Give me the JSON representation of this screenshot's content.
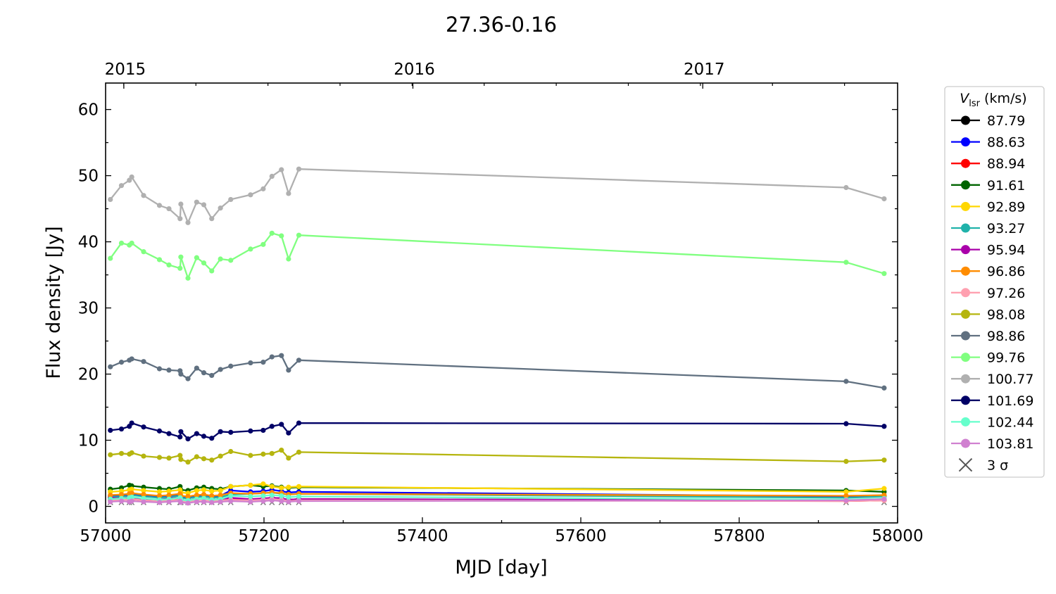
{
  "chart_data": {
    "type": "line",
    "title": "27.36-0.16",
    "xlabel": "MJD [day]",
    "ylabel": "Flux density [Jy]",
    "xlim": [
      57000,
      58000
    ],
    "ylim": [
      -2.5,
      64
    ],
    "xticks": [
      57000,
      57200,
      57400,
      57600,
      57800,
      58000
    ],
    "yticks": [
      0,
      10,
      20,
      30,
      40,
      50,
      60
    ],
    "top_axis": {
      "ticks": [
        {
          "label": "2015",
          "mjd": 57023
        },
        {
          "label": "2016",
          "mjd": 57388
        },
        {
          "label": "2017",
          "mjd": 57754
        }
      ]
    },
    "grid": false,
    "legend": {
      "title_symbol": "V",
      "title_subscript": "lsr",
      "title_units": " (km/s)",
      "placement": "right-outside",
      "sigma_label": "3 σ"
    },
    "x": [
      57006,
      57020,
      57030,
      57033,
      57048,
      57068,
      57080,
      57094,
      57095,
      57104,
      57115,
      57124,
      57134,
      57145,
      57158,
      57183,
      57199,
      57210,
      57222,
      57231,
      57244,
      57935,
      57983
    ],
    "series": [
      {
        "name": "87.79",
        "color": "#000000",
        "values": [
          1.2,
          1.3,
          1.2,
          1.3,
          1.1,
          1.0,
          1.1,
          1.2,
          1.0,
          0.9,
          1.1,
          1.2,
          1.0,
          1.1,
          1.2,
          1.0,
          1.1,
          1.3,
          1.2,
          1.0,
          1.1,
          0.9,
          1.0
        ]
      },
      {
        "name": "88.63",
        "color": "#0000ff",
        "values": [
          1.6,
          1.7,
          1.8,
          1.9,
          1.7,
          1.5,
          1.6,
          1.8,
          1.5,
          1.4,
          1.6,
          1.7,
          1.5,
          1.6,
          2.4,
          2.2,
          2.3,
          2.5,
          2.3,
          2.1,
          2.2,
          1.5,
          1.6
        ]
      },
      {
        "name": "88.94",
        "color": "#ff0000",
        "values": [
          1.0,
          1.1,
          1.0,
          1.1,
          0.9,
          0.9,
          1.0,
          1.0,
          0.9,
          0.8,
          1.0,
          1.0,
          0.9,
          1.0,
          1.1,
          0.9,
          1.0,
          1.1,
          1.0,
          0.9,
          1.0,
          0.8,
          0.9
        ]
      },
      {
        "name": "91.61",
        "color": "#006400",
        "values": [
          2.6,
          2.8,
          3.2,
          3.1,
          2.9,
          2.7,
          2.6,
          3.0,
          2.5,
          2.4,
          2.8,
          2.9,
          2.7,
          2.6,
          3.0,
          3.2,
          3.0,
          3.1,
          2.9,
          2.8,
          2.9,
          2.4,
          2.2
        ]
      },
      {
        "name": "92.89",
        "color": "#ffd700",
        "values": [
          2.2,
          2.3,
          2.5,
          2.6,
          2.4,
          2.2,
          2.3,
          2.5,
          2.1,
          2.0,
          2.4,
          2.5,
          2.3,
          2.4,
          3.0,
          3.2,
          3.4,
          3.0,
          2.8,
          2.9,
          3.0,
          2.2,
          2.7
        ]
      },
      {
        "name": "93.27",
        "color": "#20b2aa",
        "values": [
          1.4,
          1.5,
          1.6,
          1.7,
          1.5,
          1.3,
          1.4,
          1.6,
          1.3,
          1.2,
          1.4,
          1.5,
          1.3,
          1.4,
          1.8,
          1.9,
          2.0,
          2.1,
          1.9,
          1.8,
          1.9,
          1.3,
          1.5
        ]
      },
      {
        "name": "95.94",
        "color": "#aa00aa",
        "values": [
          1.3,
          1.2,
          1.4,
          1.3,
          1.1,
          1.0,
          1.2,
          1.3,
          1.0,
          0.9,
          1.1,
          1.2,
          1.0,
          1.1,
          1.3,
          1.1,
          1.2,
          1.3,
          1.2,
          1.0,
          1.1,
          0.9,
          1.0
        ]
      },
      {
        "name": "96.86",
        "color": "#ff8c00",
        "values": [
          1.7,
          1.8,
          1.9,
          2.0,
          1.8,
          1.6,
          1.7,
          1.9,
          1.6,
          1.5,
          1.7,
          1.8,
          1.6,
          1.7,
          2.0,
          1.9,
          2.0,
          2.1,
          2.0,
          1.8,
          1.9,
          1.6,
          1.7
        ]
      },
      {
        "name": "97.26",
        "color": "#ffa0b0",
        "values": [
          0.9,
          1.0,
          1.0,
          1.1,
          0.9,
          0.8,
          0.9,
          1.0,
          0.8,
          0.7,
          0.9,
          1.0,
          0.8,
          0.9,
          1.0,
          0.9,
          1.0,
          1.1,
          1.0,
          0.8,
          0.9,
          0.8,
          0.9
        ]
      },
      {
        "name": "98.08",
        "color": "#b5b50e",
        "values": [
          7.8,
          8.0,
          7.9,
          8.1,
          7.6,
          7.4,
          7.3,
          7.7,
          7.1,
          6.7,
          7.5,
          7.2,
          7.0,
          7.6,
          8.3,
          7.7,
          7.9,
          8.0,
          8.5,
          7.3,
          8.2,
          6.8,
          7.0
        ]
      },
      {
        "name": "98.86",
        "color": "#607080",
        "values": [
          21.1,
          21.8,
          22.1,
          22.3,
          21.9,
          20.8,
          20.6,
          20.5,
          20.0,
          19.3,
          20.9,
          20.2,
          19.8,
          20.7,
          21.2,
          21.7,
          21.8,
          22.6,
          22.8,
          20.6,
          22.1,
          18.9,
          17.9
        ]
      },
      {
        "name": "99.76",
        "color": "#80ff80",
        "values": [
          37.5,
          39.8,
          39.5,
          39.8,
          38.5,
          37.3,
          36.5,
          36.0,
          37.7,
          34.5,
          37.6,
          36.8,
          35.6,
          37.4,
          37.2,
          38.9,
          39.6,
          41.3,
          40.9,
          37.4,
          41.0,
          36.9,
          35.2
        ]
      },
      {
        "name": "100.77",
        "color": "#b0b0b0",
        "values": [
          46.4,
          48.5,
          49.3,
          49.8,
          47.0,
          45.5,
          45.0,
          43.5,
          45.7,
          42.9,
          46.0,
          45.6,
          43.5,
          45.1,
          46.4,
          47.1,
          48.0,
          49.9,
          50.9,
          47.3,
          51.0,
          48.2,
          46.5
        ]
      },
      {
        "name": "101.69",
        "color": "#000066",
        "values": [
          11.5,
          11.7,
          12.1,
          12.6,
          12.0,
          11.4,
          11.0,
          10.5,
          11.3,
          10.2,
          11.0,
          10.6,
          10.3,
          11.3,
          11.2,
          11.4,
          11.5,
          12.1,
          12.4,
          11.1,
          12.6,
          12.5,
          12.1
        ]
      },
      {
        "name": "102.44",
        "color": "#66ffcc",
        "values": [
          1.1,
          1.2,
          1.3,
          1.4,
          1.2,
          1.0,
          1.1,
          1.3,
          1.0,
          0.9,
          1.1,
          1.2,
          1.0,
          1.1,
          1.6,
          1.5,
          1.6,
          1.7,
          1.6,
          1.4,
          1.5,
          1.0,
          1.2
        ]
      },
      {
        "name": "103.81",
        "color": "#d080d0",
        "values": [
          0.7,
          0.8,
          0.7,
          0.8,
          0.7,
          0.6,
          0.7,
          0.8,
          0.6,
          0.5,
          0.7,
          0.7,
          0.6,
          0.7,
          0.8,
          0.7,
          0.8,
          0.9,
          0.8,
          0.7,
          0.8,
          0.9,
          1.1
        ]
      }
    ],
    "sigma3_values": [
      0.6,
      0.6,
      0.6,
      0.6,
      0.6,
      0.6,
      0.6,
      0.6,
      0.6,
      0.6,
      0.6,
      0.6,
      0.6,
      0.6,
      0.6,
      0.6,
      0.6,
      0.6,
      0.6,
      0.6,
      0.6,
      0.6,
      0.6
    ]
  }
}
